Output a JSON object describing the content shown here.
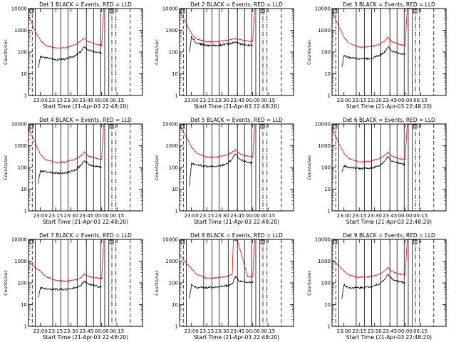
{
  "figure": {
    "colors": {
      "events": "#000000",
      "lld": "#ff0000",
      "axes": "#000000",
      "background": "#ffffff"
    },
    "y_axis_label": "Counts/sec",
    "x_axis_label": "Start Time (21-Apr-03 22:48:20)"
  },
  "chart_data": [
    {
      "type": "line",
      "title": "Det 1  BLACK = Events, RED = LLD",
      "x_ticks": [
        "23:00",
        "23:15",
        "23:30",
        "23:45",
        "00:00",
        "00:15"
      ],
      "y_ticks": [
        "1",
        "10",
        "100",
        "1000",
        "10000"
      ],
      "ylim": [
        1,
        10000
      ],
      "yscale": "log",
      "xlabel": "Start Time (21-Apr-03 22:48:20)",
      "ylabel": "Counts/sec",
      "series": [
        {
          "name": "Events",
          "color": "#000000",
          "start_value": 20,
          "x": [
            "22:58",
            "23:00",
            "23:05",
            "23:15",
            "23:25",
            "23:35",
            "23:40",
            "23:43",
            "23:47",
            "23:55",
            "00:00"
          ],
          "values": [
            20,
            60,
            55,
            45,
            48,
            70,
            110,
            180,
            120,
            95,
            90
          ]
        },
        {
          "name": "LLD",
          "color": "#ff0000",
          "x": [
            "22:48",
            "22:55",
            "23:00",
            "23:05",
            "23:15",
            "23:25",
            "23:35",
            "23:40",
            "23:43",
            "23:47",
            "23:55",
            "00:00",
            "00:02",
            "00:05",
            "00:10"
          ],
          "values": [
            5000,
            900,
            350,
            200,
            150,
            160,
            230,
            330,
            450,
            300,
            230,
            200,
            10000,
            10000,
            10000
          ]
        }
      ]
    },
    {
      "type": "line",
      "title": "Det 2  BLACK = Events, RED = LLD",
      "x_ticks": [
        "23:00",
        "23:15",
        "23:30",
        "23:45",
        "00:00",
        "00:15"
      ],
      "y_ticks": [
        "1",
        "10",
        "100",
        "1000",
        "10000"
      ],
      "ylim": [
        1,
        10000
      ],
      "yscale": "log",
      "xlabel": "Start Time (21-Apr-03 22:48:20)",
      "ylabel": "Counts/sec",
      "series": [
        {
          "name": "Events",
          "color": "#000000",
          "start_value": 100,
          "x": [
            "22:58",
            "23:00",
            "23:05",
            "23:15",
            "23:25",
            "23:35",
            "23:40",
            "23:43",
            "23:47",
            "23:55",
            "00:00"
          ],
          "values": [
            100,
            500,
            260,
            200,
            200,
            230,
            260,
            290,
            240,
            210,
            200
          ]
        },
        {
          "name": "LLD",
          "color": "#ff0000",
          "x": [
            "22:48",
            "22:55",
            "23:00",
            "23:05",
            "23:15",
            "23:25",
            "23:35",
            "23:40",
            "23:43",
            "23:47",
            "23:55",
            "00:00",
            "00:02",
            "00:05",
            "00:10"
          ],
          "values": [
            8000,
            2000,
            700,
            400,
            300,
            300,
            350,
            380,
            420,
            380,
            320,
            300,
            10000,
            10000,
            10000
          ]
        }
      ]
    },
    {
      "type": "line",
      "title": "Det 3  BLACK = Events, RED = LLD",
      "x_ticks": [
        "23:00",
        "23:15",
        "23:30",
        "23:45",
        "00:00",
        "00:15"
      ],
      "y_ticks": [
        "1",
        "10",
        "100",
        "1000",
        "10000"
      ],
      "ylim": [
        1,
        10000
      ],
      "yscale": "log",
      "xlabel": "Start Time (21-Apr-03 22:48:20)",
      "ylabel": "Counts/sec",
      "series": [
        {
          "name": "Events",
          "color": "#000000",
          "start_value": 20,
          "x": [
            "22:58",
            "23:00",
            "23:05",
            "23:15",
            "23:25",
            "23:35",
            "23:40",
            "23:43",
            "23:47",
            "23:55",
            "00:00"
          ],
          "values": [
            20,
            70,
            55,
            50,
            50,
            70,
            100,
            170,
            110,
            85,
            80
          ]
        },
        {
          "name": "LLD",
          "color": "#ff0000",
          "x": [
            "22:48",
            "22:55",
            "23:00",
            "23:05",
            "23:15",
            "23:25",
            "23:35",
            "23:40",
            "23:43",
            "23:47",
            "23:55",
            "00:00",
            "00:02",
            "00:05",
            "00:10"
          ],
          "values": [
            8000,
            1500,
            500,
            250,
            170,
            170,
            230,
            330,
            470,
            300,
            220,
            200,
            10000,
            10000,
            10000
          ]
        }
      ]
    },
    {
      "type": "line",
      "title": "Det 4  BLACK = Events, RED = LLD",
      "x_ticks": [
        "23:00",
        "23:15",
        "23:30",
        "23:45",
        "00:00",
        "00:15"
      ],
      "y_ticks": [
        "1",
        "10",
        "100",
        "1000",
        "10000"
      ],
      "ylim": [
        1,
        10000
      ],
      "yscale": "log",
      "xlabel": "Start Time (21-Apr-03 22:48:20)",
      "ylabel": "Counts/sec",
      "series": [
        {
          "name": "Events",
          "color": "#000000",
          "start_value": 20,
          "x": [
            "22:58",
            "23:00",
            "23:05",
            "23:15",
            "23:25",
            "23:35",
            "23:40",
            "23:43",
            "23:47",
            "23:55",
            "00:00"
          ],
          "values": [
            20,
            70,
            65,
            55,
            55,
            80,
            130,
            210,
            140,
            110,
            100
          ]
        },
        {
          "name": "LLD",
          "color": "#ff0000",
          "x": [
            "22:48",
            "22:55",
            "23:00",
            "23:05",
            "23:15",
            "23:25",
            "23:35",
            "23:40",
            "23:43",
            "23:47",
            "23:55",
            "00:00",
            "00:02",
            "00:05",
            "00:10"
          ],
          "values": [
            7000,
            1300,
            400,
            230,
            170,
            180,
            250,
            350,
            500,
            330,
            260,
            230,
            10000,
            10000,
            10000
          ]
        }
      ]
    },
    {
      "type": "line",
      "title": "Det 5  BLACK = Events, RED = LLD",
      "x_ticks": [
        "23:00",
        "23:15",
        "23:30",
        "23:45",
        "00:00",
        "00:15"
      ],
      "y_ticks": [
        "1",
        "10",
        "100",
        "1000",
        "10000"
      ],
      "ylim": [
        1,
        10000
      ],
      "yscale": "log",
      "xlabel": "Start Time (21-Apr-03 22:48:20)",
      "ylabel": "Counts/sec",
      "series": [
        {
          "name": "Events",
          "color": "#000000",
          "start_value": 15,
          "x": [
            "22:58",
            "23:00",
            "23:05",
            "23:15",
            "23:25",
            "23:35",
            "23:40",
            "23:43",
            "23:47",
            "23:55",
            "00:00"
          ],
          "values": [
            15,
            150,
            130,
            110,
            110,
            150,
            250,
            420,
            230,
            180,
            160
          ]
        },
        {
          "name": "LLD",
          "color": "#ff0000",
          "x": [
            "22:48",
            "22:55",
            "23:00",
            "23:05",
            "23:15",
            "23:25",
            "23:35",
            "23:40",
            "23:43",
            "23:47",
            "23:55",
            "00:00",
            "00:02",
            "00:05",
            "00:10"
          ],
          "values": [
            9000,
            2500,
            900,
            450,
            300,
            300,
            380,
            500,
            650,
            420,
            330,
            300,
            10000,
            10000,
            10000
          ]
        }
      ]
    },
    {
      "type": "line",
      "title": "Det 6  BLACK = Events, RED = LLD",
      "x_ticks": [
        "23:00",
        "23:15",
        "23:30",
        "23:45",
        "00:00",
        "00:15"
      ],
      "y_ticks": [
        "1",
        "10",
        "100",
        "1000",
        "10000"
      ],
      "ylim": [
        1,
        10000
      ],
      "yscale": "log",
      "xlabel": "Start Time (21-Apr-03 22:48:20)",
      "ylabel": "Counts/sec",
      "series": [
        {
          "name": "Events",
          "color": "#000000",
          "start_value": 60,
          "x": [
            "22:58",
            "23:00",
            "23:05",
            "23:15",
            "23:25",
            "23:35",
            "23:40",
            "23:43",
            "23:47",
            "23:55",
            "00:00"
          ],
          "values": [
            60,
            120,
            100,
            90,
            90,
            120,
            200,
            330,
            200,
            150,
            140
          ]
        },
        {
          "name": "LLD",
          "color": "#ff0000",
          "x": [
            "22:48",
            "22:55",
            "23:00",
            "23:05",
            "23:15",
            "23:25",
            "23:35",
            "23:40",
            "23:43",
            "23:47",
            "23:55",
            "00:00",
            "00:02",
            "00:05",
            "00:10"
          ],
          "values": [
            7000,
            1300,
            450,
            250,
            180,
            190,
            260,
            360,
            500,
            330,
            250,
            230,
            10000,
            10000,
            10000
          ]
        }
      ]
    },
    {
      "type": "line",
      "title": "Det 7  BLACK = Events, RED = LLD",
      "x_ticks": [
        "23:00",
        "23:15",
        "23:30",
        "23:45",
        "00:00",
        "00:15"
      ],
      "y_ticks": [
        "1",
        "10",
        "100",
        "1000",
        "10000"
      ],
      "ylim": [
        1,
        10000
      ],
      "yscale": "log",
      "xlabel": "Start Time (21-Apr-03 22:48:20)",
      "ylabel": "Counts/sec",
      "series": [
        {
          "name": "Events",
          "color": "#000000",
          "start_value": 20,
          "x": [
            "22:58",
            "23:00",
            "23:05",
            "23:15",
            "23:25",
            "23:35",
            "23:40",
            "23:43",
            "23:47",
            "23:55",
            "00:00"
          ],
          "values": [
            20,
            60,
            55,
            50,
            50,
            60,
            80,
            120,
            90,
            70,
            65
          ]
        },
        {
          "name": "LLD",
          "color": "#ff0000",
          "x": [
            "22:48",
            "22:55",
            "23:00",
            "23:05",
            "23:15",
            "23:25",
            "23:35",
            "23:40",
            "23:43",
            "23:47",
            "23:55",
            "00:00",
            "00:02",
            "00:05",
            "00:10"
          ],
          "values": [
            1000,
            500,
            350,
            200,
            130,
            120,
            140,
            180,
            250,
            200,
            170,
            160,
            10000,
            10000,
            10000
          ]
        }
      ]
    },
    {
      "type": "line",
      "title": "Det 8  BLACK = Events, RED = LLD",
      "x_ticks": [
        "23:00",
        "23:15",
        "23:30",
        "23:45",
        "00:00",
        "00:15"
      ],
      "y_ticks": [
        "1",
        "10",
        "100",
        "1000",
        "10000"
      ],
      "ylim": [
        1,
        10000
      ],
      "yscale": "log",
      "xlabel": "Start Time (21-Apr-03 22:48:20)",
      "ylabel": "Counts/sec",
      "series": [
        {
          "name": "Events",
          "color": "#000000",
          "start_value": 20,
          "x": [
            "22:58",
            "23:00",
            "23:05",
            "23:15",
            "23:25",
            "23:35",
            "23:40",
            "23:43",
            "23:47",
            "23:55",
            "00:00"
          ],
          "values": [
            20,
            80,
            60,
            60,
            65,
            75,
            90,
            200,
            120,
            110,
            110
          ]
        },
        {
          "name": "LLD",
          "color": "#ff0000",
          "x": [
            "22:48",
            "22:55",
            "23:00",
            "23:05",
            "23:15",
            "23:25",
            "23:35",
            "23:40",
            "23:41",
            "23:45",
            "23:55",
            "00:00",
            "00:02",
            "00:05",
            "00:10"
          ],
          "values": [
            2000,
            800,
            450,
            250,
            160,
            170,
            200,
            250,
            9000,
            9000,
            200,
            190,
            10000,
            10000,
            10000
          ]
        }
      ]
    },
    {
      "type": "line",
      "title": "Det 9  BLACK = Events, RED = LLD",
      "x_ticks": [
        "23:00",
        "23:15",
        "23:30",
        "23:45",
        "00:00",
        "00:15"
      ],
      "y_ticks": [
        "1",
        "10",
        "100",
        "1000",
        "10000"
      ],
      "ylim": [
        1,
        10000
      ],
      "yscale": "log",
      "xlabel": "Start Time (21-Apr-03 22:48:20)",
      "ylabel": "Counts/sec",
      "series": [
        {
          "name": "Events",
          "color": "#000000",
          "start_value": 20,
          "x": [
            "22:58",
            "23:00",
            "23:05",
            "23:15",
            "23:25",
            "23:35",
            "23:40",
            "23:43",
            "23:47",
            "23:55",
            "00:00"
          ],
          "values": [
            20,
            80,
            60,
            60,
            65,
            90,
            150,
            250,
            150,
            110,
            100
          ]
        },
        {
          "name": "LLD",
          "color": "#ff0000",
          "x": [
            "22:48",
            "22:55",
            "23:00",
            "23:05",
            "23:15",
            "23:25",
            "23:35",
            "23:40",
            "23:43",
            "23:47",
            "23:55",
            "00:00",
            "00:02",
            "00:05",
            "00:10"
          ],
          "values": [
            1200,
            600,
            350,
            230,
            180,
            190,
            250,
            350,
            500,
            330,
            250,
            230,
            10000,
            10000,
            10000
          ]
        }
      ]
    }
  ]
}
